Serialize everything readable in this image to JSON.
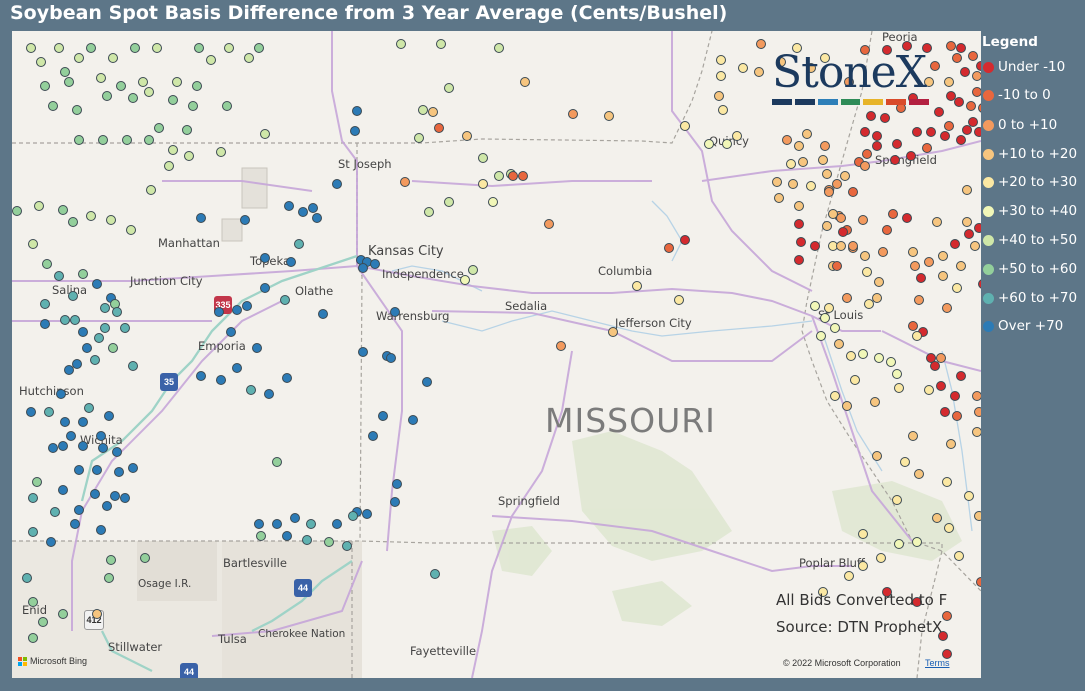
{
  "title": "Soybean Spot Basis Difference from 3 Year Average (Cents/Bushel)",
  "legend": {
    "title": "Legend",
    "items": [
      {
        "label": "Under -10",
        "color": "#d42a2e"
      },
      {
        "label": "-10 to 0",
        "color": "#e8673e"
      },
      {
        "label": "0 to +10",
        "color": "#f39a5e"
      },
      {
        "label": "+10 to +20",
        "color": "#f6c57f"
      },
      {
        "label": "+20 to +30",
        "color": "#fbe8a3"
      },
      {
        "label": "+30 to +40",
        "color": "#f1f7b8"
      },
      {
        "label": "+40 to +50",
        "color": "#cfe7a8"
      },
      {
        "label": "+50 to +60",
        "color": "#93cf9b"
      },
      {
        "label": "+60 to +70",
        "color": "#5fb1b0"
      },
      {
        "label": "Over +70",
        "color": "#2c7bb6"
      }
    ]
  },
  "map": {
    "state_label": "MISSOURI",
    "cities": [
      "St Joseph",
      "Manhattan",
      "Kansas City",
      "Independence",
      "Junction City",
      "Topeka",
      "Salina",
      "Olathe",
      "Columbia",
      "Sedalia",
      "Warrensburg",
      "Jefferson City",
      "Emporia",
      "Hutchinson",
      "Wichita",
      "St Louis",
      "Springfield",
      "Quincy",
      "Peoria",
      "Springfield",
      "Bartlesville",
      "Poplar Bluff",
      "Osage I.R.",
      "Enid",
      "Tulsa",
      "Cherokee Nation",
      "Stillwater",
      "Fayetteville"
    ],
    "highways": [
      "335",
      "35",
      "44",
      "412",
      "44"
    ],
    "logo": "StoneX",
    "note_1": "All Bids Converted to F",
    "note_2": "Source: DTN ProphetX",
    "copyright": "© 2022 Microsoft Corporation",
    "terms": "Terms",
    "bing": "Microsoft Bing"
  }
}
